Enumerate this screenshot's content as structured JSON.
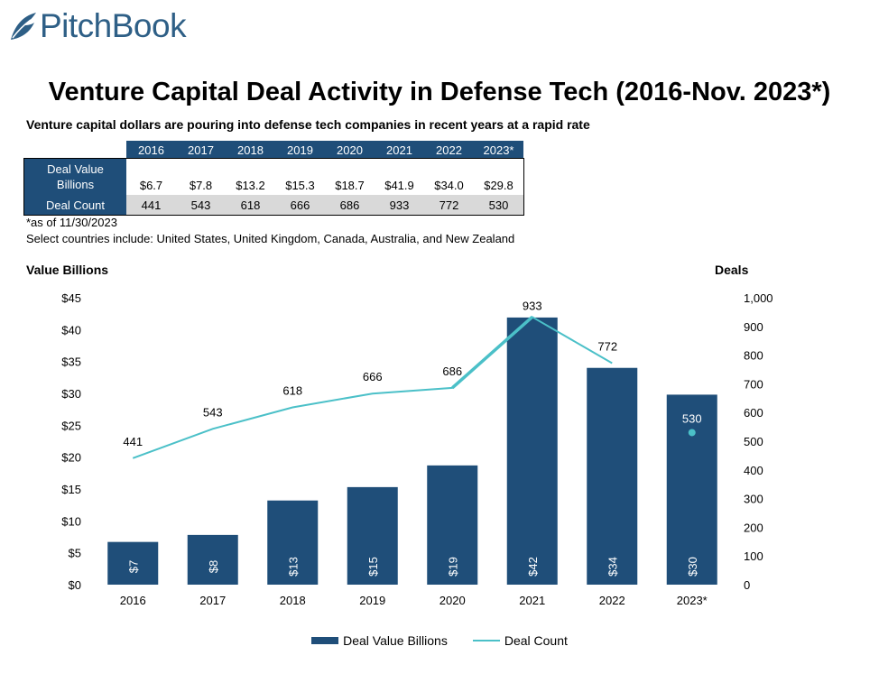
{
  "logo": {
    "text": "PitchBook",
    "color": "#2e5f86"
  },
  "title": "Venture Capital Deal Activity in Defense Tech (2016-Nov. 2023*)",
  "subtitle": "Venture capital dollars are pouring into defense tech companies in recent years at a rapid rate",
  "summary_table": {
    "years": [
      "2016",
      "2017",
      "2018",
      "2019",
      "2020",
      "2021",
      "2022",
      "2023*"
    ],
    "value_row_label": "Deal Value Billions",
    "value_row_label_lines": [
      "Deal Value",
      "Billions"
    ],
    "values": [
      "$6.7",
      "$7.8",
      "$13.2",
      "$15.3",
      "$18.7",
      "$41.9",
      "$34.0",
      "$29.8"
    ],
    "count_row_label": "Deal Count",
    "counts": [
      "441",
      "543",
      "618",
      "666",
      "686",
      "933",
      "772",
      "530"
    ]
  },
  "notes": {
    "asof": "*as of 11/30/2023",
    "countries": "Select countries include: United States, United Kingdom, Canada, Australia, and New Zealand"
  },
  "colors": {
    "bar": "#1f4e79",
    "line": "#4bc0c8",
    "header": "#1f4e79",
    "count_row_bg": "#d9d9d9"
  },
  "chart_data": {
    "type": "bar",
    "categories": [
      "2016",
      "2017",
      "2018",
      "2019",
      "2020",
      "2021",
      "2022",
      "2023*"
    ],
    "series": [
      {
        "name": "Deal Value Billions",
        "type": "bar",
        "axis": "left",
        "values": [
          6.7,
          7.8,
          13.2,
          15.3,
          18.7,
          41.9,
          34.0,
          29.8
        ],
        "data_labels": [
          "$7",
          "$8",
          "$13",
          "$15",
          "$19",
          "$42",
          "$34",
          "$30"
        ]
      },
      {
        "name": "Deal Count",
        "type": "line",
        "axis": "right",
        "values": [
          441,
          543,
          618,
          666,
          686,
          933,
          772,
          530
        ],
        "data_labels": [
          "441",
          "543",
          "618",
          "666",
          "686",
          "933",
          "772",
          "530"
        ],
        "note": "2023* shown as a standalone marker"
      }
    ],
    "y_left": {
      "label": "Value Billions",
      "ylim": [
        0,
        45
      ],
      "ticks": [
        "$0",
        "$5",
        "$10",
        "$15",
        "$20",
        "$25",
        "$30",
        "$35",
        "$40",
        "$45"
      ]
    },
    "y_right": {
      "label": "Deals",
      "ylim": [
        0,
        1000
      ],
      "ticks": [
        "0",
        "100",
        "200",
        "300",
        "400",
        "500",
        "600",
        "700",
        "800",
        "900",
        "1,000"
      ]
    },
    "grid": false,
    "legend": {
      "position": "bottom",
      "entries": [
        "Deal Value Billions",
        "Deal Count"
      ]
    }
  }
}
